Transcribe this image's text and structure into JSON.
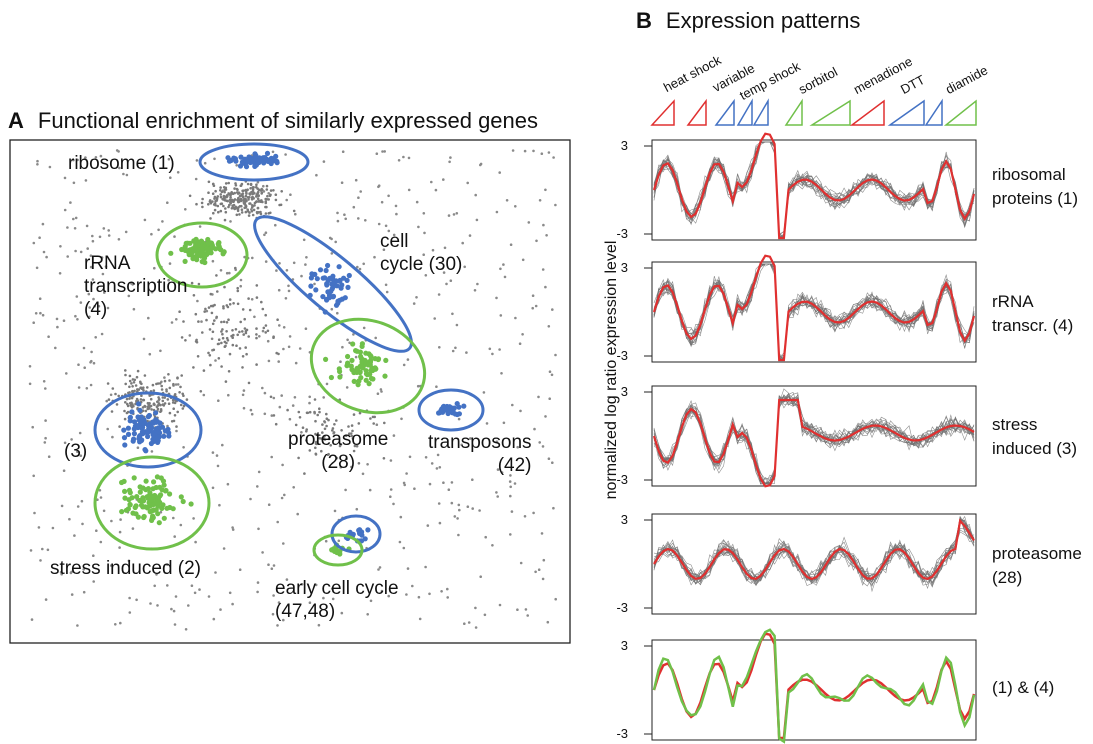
{
  "panel_a": {
    "letter": "A",
    "title": "Functional enrichment of similarly expressed genes",
    "clusters": [
      {
        "label": "ribosome (1)",
        "color": "#4472c4"
      },
      {
        "label": "rRNA\ntranscription\n(4)",
        "color": "#70c04a"
      },
      {
        "label": "cell\ncycle (30)",
        "color": "#4472c4"
      },
      {
        "label": "proteasome\n(28)",
        "color": "#70c04a"
      },
      {
        "label": "transposons\n(42)",
        "color": "#4472c4"
      },
      {
        "label": "(3)",
        "color": "#4472c4"
      },
      {
        "label": "stress induced (2)",
        "color": "#70c04a"
      },
      {
        "label": "early cell cycle\n(47,48)",
        "color": "#70c04a"
      }
    ]
  },
  "panel_b": {
    "letter": "B",
    "title": "Expression patterns",
    "y_axis_label": "normalized log ratio expression level",
    "conditions": [
      "heat shock",
      "variable",
      "temp shock",
      "sorbitol",
      "menadione",
      "DTT",
      "diamide"
    ],
    "ticks": {
      "top": "3",
      "bottom": "-3"
    },
    "rows": [
      {
        "label": "ribosomal\nproteins (1)"
      },
      {
        "label": "rRNA\ntranscr. (4)"
      },
      {
        "label": "stress\ninduced (3)"
      },
      {
        "label": "proteasome\n(28)"
      },
      {
        "label": "(1) & (4)"
      }
    ],
    "colors": {
      "red": "#e03030",
      "blue": "#4472c4",
      "green": "#70c04a",
      "gray": "#707070"
    }
  }
}
